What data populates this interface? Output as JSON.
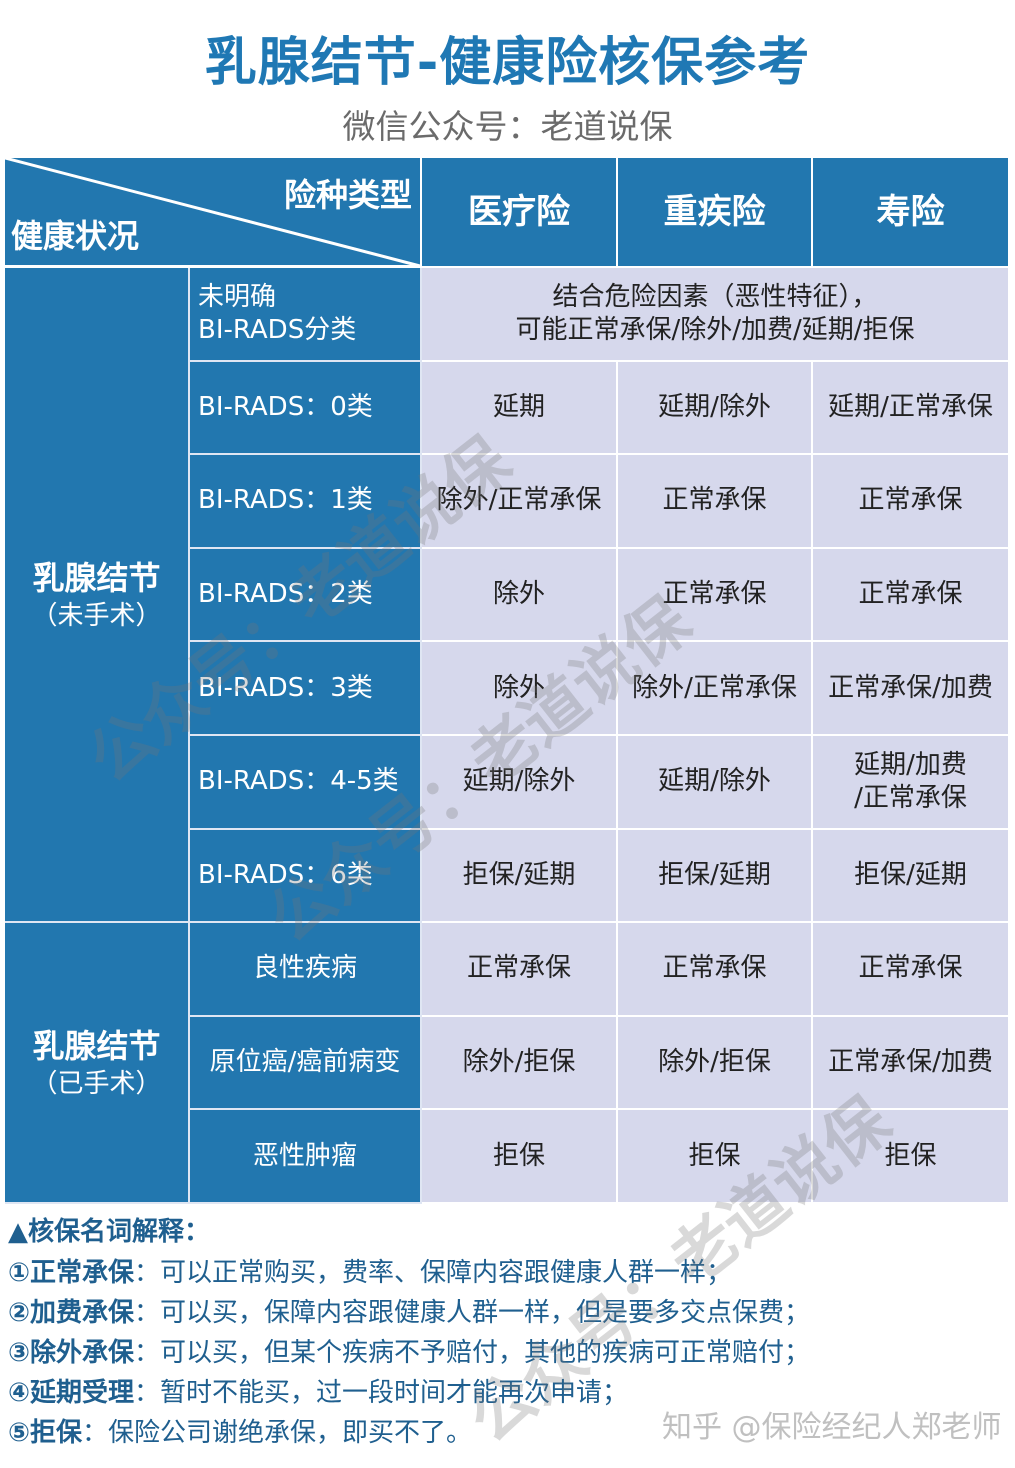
{
  "header": {
    "title": "乳腺结节-健康险核保参考",
    "subtitle": "微信公众号：老道说保"
  },
  "table": {
    "corner_top": "险种类型",
    "corner_bottom": "健康状况",
    "columns": [
      "医疗险",
      "重疾险",
      "寿险"
    ],
    "groups": [
      {
        "title": "乳腺结节",
        "subtitle": "（未手术）"
      },
      {
        "title": "乳腺结节",
        "subtitle": "（已手术）"
      }
    ],
    "rows": [
      {
        "label": "未明确\nBI-RADS分类",
        "merged": "结合危险因素（恶性特征），\n可能正常承保/除外/加费/延期/拒保"
      },
      {
        "label": "BI-RADS：0类",
        "values": [
          "延期",
          "延期/除外",
          "延期/正常承保"
        ]
      },
      {
        "label": "BI-RADS：1类",
        "values": [
          "除外/正常承保",
          "正常承保",
          "正常承保"
        ]
      },
      {
        "label": "BI-RADS：2类",
        "values": [
          "除外",
          "正常承保",
          "正常承保"
        ]
      },
      {
        "label": "BI-RADS：3类",
        "values": [
          "除外",
          "除外/正常承保",
          "正常承保/加费"
        ]
      },
      {
        "label": "BI-RADS：4-5类",
        "values": [
          "延期/除外",
          "延期/除外",
          "延期/加费\n/正常承保"
        ]
      },
      {
        "label": "BI-RADS：6类",
        "values": [
          "拒保/延期",
          "拒保/延期",
          "拒保/延期"
        ]
      },
      {
        "label": "良性疾病",
        "values": [
          "正常承保",
          "正常承保",
          "正常承保"
        ]
      },
      {
        "label": "原位癌/癌前病变",
        "values": [
          "除外/拒保",
          "除外/拒保",
          "正常承保/加费"
        ]
      },
      {
        "label": "恶性肿瘤",
        "values": [
          "拒保",
          "拒保",
          "拒保"
        ]
      }
    ]
  },
  "notes": {
    "heading": "▲核保名词解释：",
    "items": [
      {
        "term": "①正常承保",
        "desc": "：可以正常购买，费率、保障内容跟健康人群一样；"
      },
      {
        "term": "②加费承保",
        "desc": "：可以买，保障内容跟健康人群一样，但是要多交点保费；"
      },
      {
        "term": "③除外承保",
        "desc": "：可以买，但某个疾病不予赔付，其他的疾病可正常赔付；"
      },
      {
        "term": "④延期受理",
        "desc": "：暂时不能买，过一段时间才能再次申请；"
      },
      {
        "term": "⑤拒保",
        "desc": "：保险公司谢绝承保，即买不了。"
      }
    ]
  },
  "watermark": "公众号：老道说保",
  "credit": "知乎 @保险经纪人郑老师",
  "colors": {
    "header_blue": "#2277af",
    "cell_bg": "#d6d8ec",
    "title": "#1f78b4"
  }
}
